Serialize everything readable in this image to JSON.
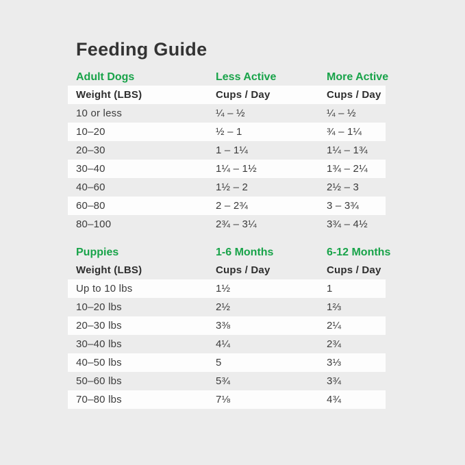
{
  "title": "Feeding Guide",
  "colors": {
    "accent_green": "#18a349",
    "page_background": "#ececec",
    "stripe_white": "#fdfdfd",
    "text_dark": "#333333"
  },
  "chart_data": [
    {
      "type": "table",
      "section_label": "Adult Dogs",
      "group_headers": [
        "Less Active",
        "More Active"
      ],
      "sub_headers": [
        "Weight (LBS)",
        "Cups / Day",
        "Cups / Day"
      ],
      "rows": [
        [
          "10 or less",
          "¼ – ½",
          "¼ – ½"
        ],
        [
          "10–20",
          "½ – 1",
          "¾ – 1¼"
        ],
        [
          "20–30",
          "1 – 1¼",
          "1¼ – 1¾"
        ],
        [
          "30–40",
          "1¼ – 1½",
          "1¾ – 2¼"
        ],
        [
          "40–60",
          "1½ – 2",
          "2½ – 3"
        ],
        [
          "60–80",
          "2 – 2¾",
          "3 – 3¾"
        ],
        [
          "80–100",
          "2¾ – 3¼",
          "3¾ – 4½"
        ]
      ]
    },
    {
      "type": "table",
      "section_label": "Puppies",
      "group_headers": [
        "1-6 Months",
        "6-12 Months"
      ],
      "sub_headers": [
        "Weight (LBS)",
        "Cups / Day",
        "Cups / Day"
      ],
      "rows": [
        [
          "Up to 10 lbs",
          "1½",
          "1"
        ],
        [
          "10–20 lbs",
          "2½",
          "1⅔"
        ],
        [
          "20–30 lbs",
          "3⅜",
          "2¼"
        ],
        [
          "30–40 lbs",
          "4¼",
          "2¾"
        ],
        [
          "40–50 lbs",
          "5",
          "3⅓"
        ],
        [
          "50–60 lbs",
          "5¾",
          "3¾"
        ],
        [
          "70–80 lbs",
          "7⅛",
          "4¾"
        ]
      ]
    }
  ]
}
